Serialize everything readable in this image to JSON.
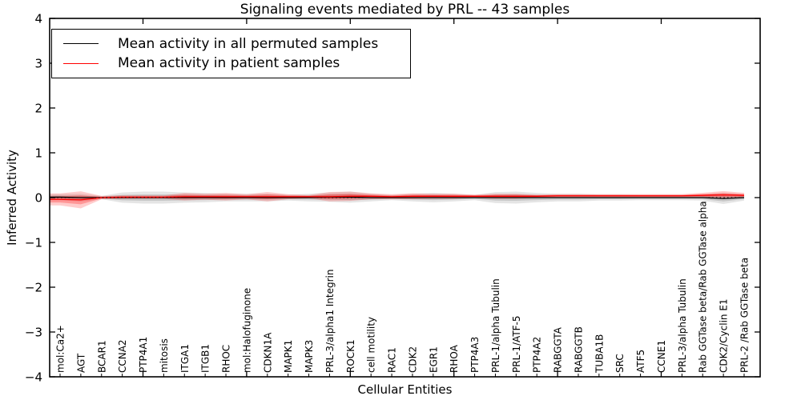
{
  "title": "Signaling events mediated by PRL -- 43 samples",
  "legend": {
    "items": [
      {
        "label": "Mean activity in all permuted samples",
        "color": "#000000"
      },
      {
        "label": "Mean activity in patient samples",
        "color": "#ff0000"
      }
    ]
  },
  "chart_data": {
    "type": "line",
    "title": "Signaling events mediated by PRL -- 43 samples",
    "xlabel": "Cellular Entities",
    "ylabel": "Inferred Activity",
    "ylim": [
      -4,
      4
    ],
    "yticks": [
      -4,
      -3,
      -2,
      -1,
      0,
      1,
      2,
      3,
      4
    ],
    "grid": false,
    "legend_position": "upper left",
    "zero_reference_line": 0,
    "major_xtick_indices": [
      4,
      9,
      14,
      19,
      24,
      29
    ],
    "categories": [
      "mol:Ca2+",
      "AGT",
      "BCAR1",
      "CCNA2",
      "PTP4A1",
      "mitosis",
      "ITGA1",
      "ITGB1",
      "RHOC",
      "mol:Halofuginone",
      "CDKN1A",
      "MAPK1",
      "MAPK3",
      "PRL-3/alpha1 Integrin",
      "ROCK1",
      "cell motility",
      "RAC1",
      "CDK2",
      "EGR1",
      "RHOA",
      "PTP4A3",
      "PRL-1/alpha Tubulin",
      "PRL-1/ATF-5",
      "PTP4A2",
      "RABGGTA",
      "RABGGTB",
      "TUBA1B",
      "SRC",
      "ATF5",
      "CCNE1",
      "PRL-3/alpha Tubulin",
      "Rab GGTase beta/Rab GGTase alpha",
      "CDK2/Cyclin E1",
      "PRL-2 /Rab GGTase beta"
    ],
    "series": [
      {
        "name": "Mean activity in all permuted samples",
        "color": "#000000",
        "band_fill": "#000000",
        "mean": [
          0.01,
          0.0,
          0.0,
          0.0,
          0.0,
          0.0,
          0.0,
          0.0,
          0.0,
          0.0,
          0.0,
          0.0,
          0.0,
          0.01,
          0.01,
          0.0,
          0.0,
          0.0,
          0.0,
          0.0,
          0.0,
          0.0,
          0.0,
          0.0,
          0.0,
          0.0,
          0.0,
          0.0,
          0.0,
          0.0,
          0.0,
          0.0,
          -0.02,
          0.0
        ],
        "sd": [
          0.035,
          0.045,
          0.02,
          0.06,
          0.07,
          0.07,
          0.06,
          0.055,
          0.045,
          0.045,
          0.045,
          0.035,
          0.045,
          0.055,
          0.065,
          0.045,
          0.03,
          0.045,
          0.055,
          0.045,
          0.03,
          0.065,
          0.07,
          0.055,
          0.045,
          0.045,
          0.035,
          0.035,
          0.03,
          0.03,
          0.03,
          0.035,
          0.065,
          0.035
        ]
      },
      {
        "name": "Mean activity in patient samples",
        "color": "#ff0000",
        "band_fill": "#ff0000",
        "mean": [
          -0.04,
          -0.05,
          0.0,
          0.01,
          0.01,
          0.01,
          0.02,
          0.02,
          0.02,
          0.02,
          0.02,
          0.02,
          0.02,
          0.02,
          0.03,
          0.03,
          0.02,
          0.03,
          0.03,
          0.03,
          0.03,
          0.03,
          0.03,
          0.03,
          0.04,
          0.04,
          0.04,
          0.04,
          0.04,
          0.04,
          0.04,
          0.05,
          0.06,
          0.05
        ],
        "sd": [
          0.07,
          0.1,
          0.02,
          0.02,
          0.02,
          0.02,
          0.045,
          0.035,
          0.045,
          0.03,
          0.055,
          0.03,
          0.02,
          0.055,
          0.055,
          0.035,
          0.03,
          0.035,
          0.03,
          0.03,
          0.02,
          0.03,
          0.03,
          0.02,
          0.02,
          0.02,
          0.02,
          0.02,
          0.02,
          0.02,
          0.02,
          0.03,
          0.045,
          0.03
        ]
      }
    ]
  }
}
